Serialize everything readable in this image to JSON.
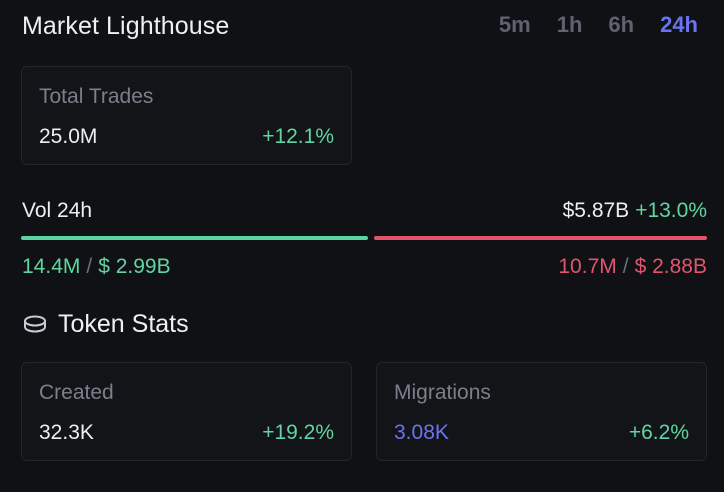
{
  "header": {
    "title": "Market Lighthouse",
    "timeframes": [
      "5m",
      "1h",
      "6h",
      "24h"
    ],
    "active_timeframe": "24h"
  },
  "total_trades": {
    "label": "Total Trades",
    "value": "25.0M",
    "change": "+12.1%"
  },
  "volume": {
    "label": "Vol 24h",
    "total": "$5.87B",
    "change": "+13.0%",
    "buy_share": 0.51,
    "buy": {
      "count": "14.4M",
      "separator": "/",
      "amount": "$ 2.99B"
    },
    "sell": {
      "count": "10.7M",
      "separator": "/",
      "amount": "$ 2.88B"
    }
  },
  "token_stats": {
    "title": "Token Stats",
    "icon": "coins-icon",
    "created": {
      "label": "Created",
      "value": "32.3K",
      "change": "+19.2%"
    },
    "migrations": {
      "label": "Migrations",
      "value": "3.08K",
      "change": "+6.2%"
    }
  },
  "colors": {
    "accent": "#6a74f0",
    "positive": "#62d4a1",
    "negative": "#e0546e"
  }
}
